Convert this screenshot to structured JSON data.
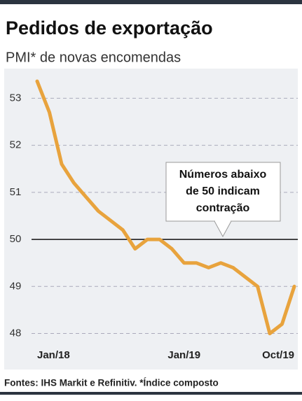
{
  "chart_data": {
    "type": "line",
    "title": "Pedidos de exportação",
    "subtitle": "PMI* de novas encomendas",
    "categories": [
      "Jan/18",
      null,
      null,
      null,
      null,
      null,
      null,
      null,
      null,
      null,
      null,
      null,
      "Jan/19",
      null,
      null,
      null,
      null,
      null,
      null,
      null,
      null,
      "Oct/19"
    ],
    "series": [
      {
        "name": "PMI",
        "color": "#e8a33d",
        "values": [
          53.36,
          52.7,
          51.6,
          51.2,
          50.9,
          50.6,
          50.4,
          50.2,
          49.8,
          50.0,
          50.0,
          49.8,
          49.5,
          49.5,
          49.4,
          49.5,
          49.4,
          49.2,
          49.0,
          48.0,
          48.2,
          49.0
        ]
      }
    ],
    "ylim": [
      47.8,
      53.6
    ],
    "yticks": [
      48,
      49,
      50,
      51,
      52,
      53
    ],
    "grid": true,
    "reference_line": 50,
    "annotation": [
      "Números abaixo",
      "de 50 indicam",
      "contração"
    ],
    "source": "Fontes: IHS Markit e Refinitiv. *Índice composto"
  }
}
